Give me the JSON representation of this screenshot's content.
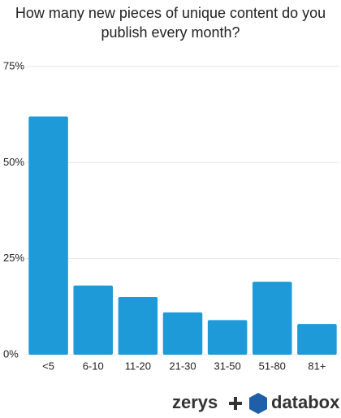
{
  "chart_data": {
    "type": "bar",
    "title": "How many new pieces of unique content do you publish every month?",
    "categories": [
      "<5",
      "6-10",
      "11-20",
      "21-30",
      "31-50",
      "51-80",
      "81+"
    ],
    "values": [
      62,
      18,
      15,
      11,
      9,
      19,
      8
    ],
    "color": "#1f9ad8",
    "ylim": [
      0,
      75
    ],
    "yticks": [
      {
        "value": 0,
        "label": "0%"
      },
      {
        "value": 25,
        "label": "25%"
      },
      {
        "value": 50,
        "label": "50%"
      },
      {
        "value": 75,
        "label": "75%"
      }
    ],
    "grid": true
  },
  "footer": {
    "brand_left": "zerys",
    "brand_right": "databox"
  }
}
